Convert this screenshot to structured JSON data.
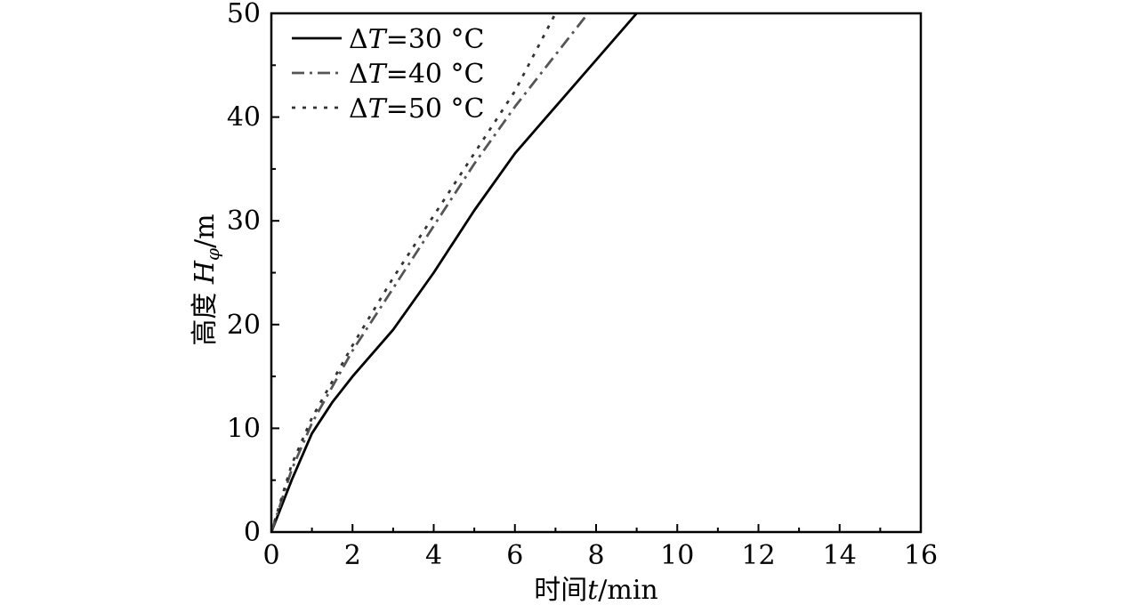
{
  "chart_data": {
    "type": "line",
    "title": "",
    "xlabel": {
      "prefix": "时间",
      "var": "t",
      "unit": "/min"
    },
    "ylabel": {
      "prefix": "高度 ",
      "var": "H",
      "sub": "φ",
      "unit": "/m"
    },
    "xlim": [
      0,
      16
    ],
    "ylim": [
      0,
      50
    ],
    "xticks": [
      0,
      2,
      4,
      6,
      8,
      10,
      12,
      14,
      16
    ],
    "yticks": [
      0,
      10,
      20,
      30,
      40,
      50
    ],
    "grid": false,
    "legend_position": "top-left",
    "series": [
      {
        "name": {
          "delta": "Δ",
          "var": "T",
          "rest": "=30 °C"
        },
        "style": "solid",
        "color": "#000000",
        "points": [
          [
            0,
            0
          ],
          [
            0.5,
            5
          ],
          [
            1,
            9.5
          ],
          [
            1.5,
            12.5
          ],
          [
            2,
            15
          ],
          [
            3,
            19.5
          ],
          [
            4,
            25
          ],
          [
            5,
            31
          ],
          [
            6,
            36.5
          ],
          [
            7,
            41
          ],
          [
            8,
            45.5
          ],
          [
            9,
            50
          ]
        ]
      },
      {
        "name": {
          "delta": "Δ",
          "var": "T",
          "rest": "=40 °C"
        },
        "style": "dashdot",
        "color": "#555555",
        "points": [
          [
            0,
            0
          ],
          [
            0.5,
            6
          ],
          [
            1,
            10.5
          ],
          [
            1.5,
            14
          ],
          [
            2,
            17.5
          ],
          [
            3,
            23.5
          ],
          [
            4,
            29.5
          ],
          [
            5,
            35.5
          ],
          [
            6,
            41
          ],
          [
            7,
            46
          ],
          [
            7.8,
            50
          ]
        ]
      },
      {
        "name": {
          "delta": "Δ",
          "var": "T",
          "rest": "=50 °C"
        },
        "style": "dotted",
        "color": "#333333",
        "points": [
          [
            0,
            0
          ],
          [
            0.5,
            6.5
          ],
          [
            1,
            11
          ],
          [
            1.5,
            14.5
          ],
          [
            2,
            18
          ],
          [
            3,
            24.5
          ],
          [
            4,
            30.5
          ],
          [
            5,
            36.5
          ],
          [
            6,
            42.5
          ],
          [
            7,
            50
          ]
        ]
      }
    ]
  }
}
